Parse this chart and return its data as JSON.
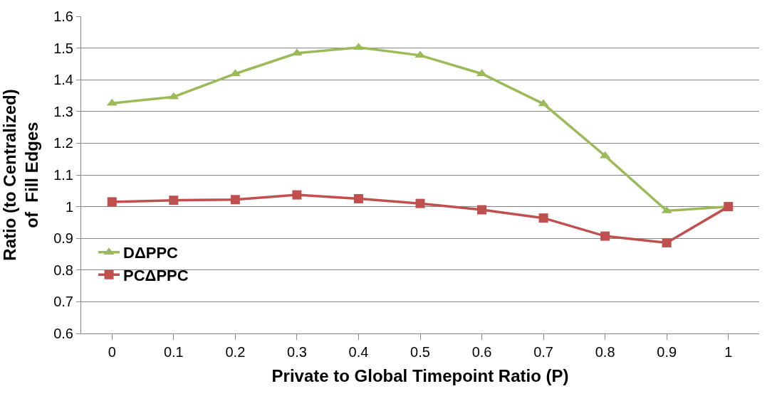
{
  "chart_data": {
    "type": "line",
    "xlabel": "Private to Global Timepoint Ratio (P)",
    "ylabel": "Ratio (to Centralized)\nof  Fill Edges",
    "categories": [
      "0",
      "0.1",
      "0.2",
      "0.3",
      "0.4",
      "0.5",
      "0.6",
      "0.7",
      "0.8",
      "0.9",
      "1"
    ],
    "series": [
      {
        "name": "DΔPPC",
        "color": "#9bbb59",
        "marker": "triangle",
        "values": [
          1.326,
          1.346,
          1.419,
          1.484,
          1.502,
          1.477,
          1.419,
          1.324,
          1.16,
          0.987,
          1.0
        ]
      },
      {
        "name": "PCΔPPC",
        "color": "#c0504d",
        "marker": "square",
        "values": [
          1.015,
          1.02,
          1.022,
          1.037,
          1.025,
          1.01,
          0.99,
          0.964,
          0.907,
          0.886,
          1.0
        ]
      }
    ],
    "ylim": [
      0.6,
      1.6
    ],
    "yticks": [
      0.6,
      0.7,
      0.8,
      0.9,
      1,
      1.1,
      1.2,
      1.3,
      1.4,
      1.5,
      1.6
    ],
    "grid": "y",
    "legend": "center left",
    "line_style": "solid"
  }
}
